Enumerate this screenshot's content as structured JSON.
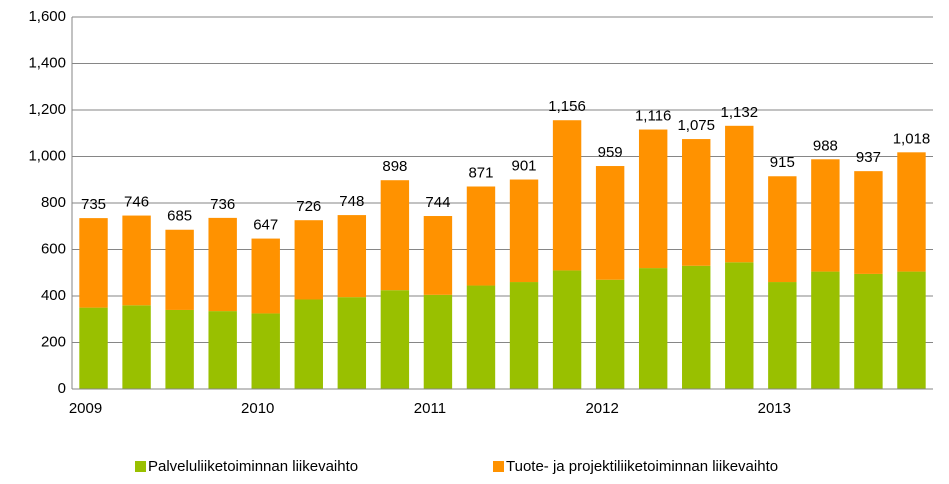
{
  "chart_data": {
    "type": "stacked_bar",
    "categories": [
      "2009",
      null,
      null,
      null,
      "2010",
      null,
      null,
      null,
      "2011",
      null,
      null,
      null,
      "2012",
      null,
      null,
      null,
      "2013",
      null,
      null,
      null
    ],
    "series": [
      {
        "name": "Palveluliiketoiminnan liikevaihto",
        "color": "#99c000",
        "values": [
          350,
          360,
          340,
          335,
          325,
          385,
          395,
          425,
          405,
          445,
          460,
          510,
          470,
          520,
          530,
          545,
          460,
          505,
          495,
          505
        ]
      },
      {
        "name": "Tuote- ja projektiliiketoiminnan liikevaihto",
        "color": "#ff9200",
        "values": [
          385,
          386,
          345,
          401,
          322,
          341,
          353,
          473,
          339,
          426,
          441,
          646,
          489,
          596,
          545,
          587,
          455,
          483,
          442,
          513
        ]
      }
    ],
    "totals": [
      735,
      746,
      685,
      736,
      647,
      726,
      748,
      898,
      744,
      871,
      901,
      1156,
      959,
      1116,
      1075,
      1132,
      915,
      988,
      937,
      1018
    ],
    "total_labels": [
      "735",
      "746",
      "685",
      "736",
      "647",
      "726",
      "748",
      "898",
      "744",
      "871",
      "901",
      "1,156",
      "959",
      "1,116",
      "1,075",
      "1,132",
      "915",
      "988",
      "937",
      "1,018"
    ],
    "ylim": [
      0,
      1600
    ],
    "yticks": [
      0,
      200,
      400,
      600,
      800,
      {
        "value": 1000,
        "label": "1,000"
      },
      {
        "value": 1200,
        "label": "1,200"
      },
      {
        "value": 1400,
        "label": "1,400"
      },
      {
        "value": 1600,
        "label": "1,600"
      }
    ],
    "grid": true,
    "legend": "bottom"
  }
}
